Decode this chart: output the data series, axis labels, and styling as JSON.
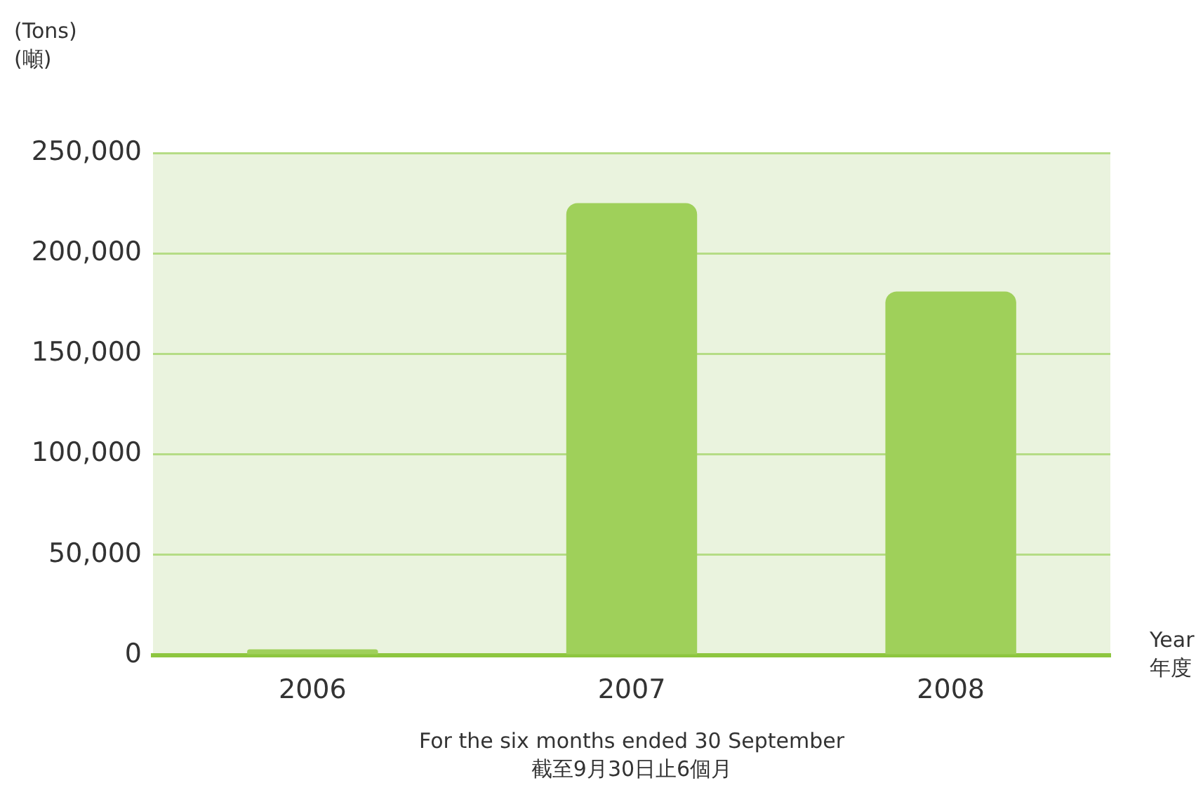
{
  "chart_data": {
    "type": "bar",
    "ylabel": "(Tons)\n(噸)",
    "xlabel": "Year\n年度",
    "annotations": [
      "For the six months ended 30 September\n截至9月30日止6個月"
    ],
    "categories": [
      "2006",
      "2007",
      "2008"
    ],
    "values": [
      3000,
      225000,
      181000
    ],
    "color": "#9fd05a",
    "ylim": [
      0,
      250000
    ],
    "yticks": [
      {
        "value": 0,
        "label": "0"
      },
      {
        "value": 50000,
        "label": "50,000"
      },
      {
        "value": 100000,
        "label": "100,000"
      },
      {
        "value": 150000,
        "label": "150,000"
      },
      {
        "value": 200000,
        "label": "200,000"
      },
      {
        "value": 250000,
        "label": "250,000"
      }
    ],
    "grid": "y",
    "legend": false
  }
}
